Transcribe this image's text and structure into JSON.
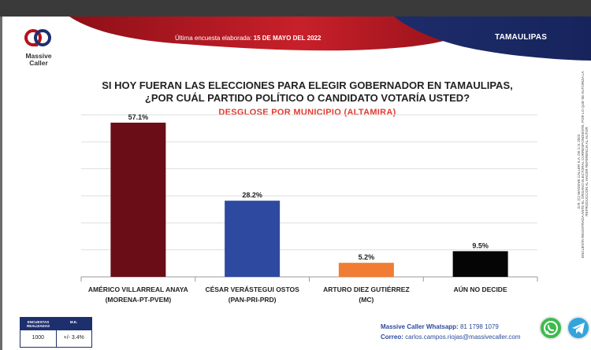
{
  "header": {
    "date_label": "Última encuesta elaborada:",
    "date_value": "15 DE MAYO DEL 2022",
    "state": "TAMAULIPAS"
  },
  "brand": {
    "logo_line1": "Massive",
    "logo_line2": "Caller"
  },
  "title_line1": "SI HOY FUERAN LAS ELECCIONES PARA ELEGIR GOBERNADOR EN TAMAULIPAS,",
  "title_line2": "¿POR CUÁL PARTIDO POLÍTICO O CANDIDATO VOTARÍA USTED?",
  "subtitle": "DESGLOSE POR MUNICIPIO (ALTAMIRA)",
  "chart_data": {
    "type": "bar",
    "categories": [
      [
        "AMÉRICO VILLARREAL ANAYA",
        "(MORENA-PT-PVEM)"
      ],
      [
        "CÉSAR VERÁSTEGUI OSTOS",
        "(PAN-PRI-PRD)"
      ],
      [
        "ARTURO DIEZ GUTIÉRREZ",
        "(MC)"
      ],
      [
        "AÚN NO DECIDE"
      ]
    ],
    "values": [
      57.1,
      28.2,
      5.2,
      9.5
    ],
    "value_labels": [
      "57.1%",
      "28.2%",
      "5.2%",
      "9.5%"
    ],
    "colors": [
      "#6b0d16",
      "#2e4aa0",
      "#f07d33",
      "#050505"
    ],
    "ylim": [
      0,
      60
    ],
    "grid": true
  },
  "side_note": {
    "line1": "D.R. (C) MASSIVE CALLER S.A. DE C.V. 2022",
    "line2": "ENCUESTA REGISTRADA ANTE EL ÓRGANO ELECTORAL CORRESPONDIENTE, POR LO QUE SE AUTORIZA LA",
    "line3": "REPRODUCCIÓN AL HACER REFERENCIA AL AUTOR"
  },
  "stats": {
    "col1_header": "ENCUESTAS REALIZADAS",
    "col2_header": "M.E.",
    "col1_value": "1000",
    "col2_value": "+/- 3.4%"
  },
  "contact": {
    "whatsapp_label": "Massive Caller Whatsapp:",
    "whatsapp_value": "81 1798 1079",
    "email_label": "Correo:",
    "email_value": "carlos.campos.riojas@massivecaller.com"
  },
  "icons": {
    "whatsapp": "whatsapp-icon",
    "telegram": "telegram-icon"
  }
}
